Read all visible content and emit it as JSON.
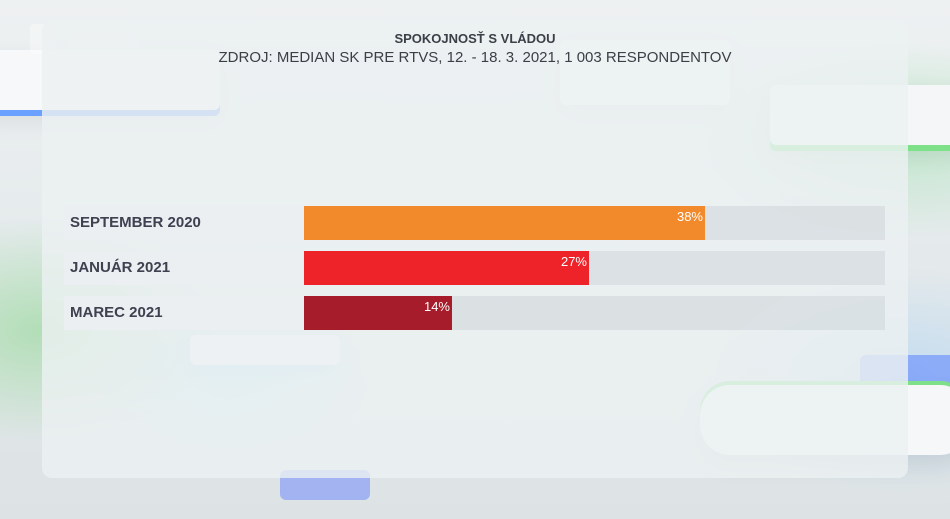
{
  "chart_data": {
    "type": "bar",
    "title": "SPOKOJNOSŤ S VLÁDOU",
    "subtitle": "ZDROJ: MEDIAN SK PRE RTVS, 12. - 18. 3. 2021, 1 003 RESPONDENTOV",
    "orientation": "horizontal",
    "categories": [
      "SEPTEMBER 2020",
      "JANUÁR 2021",
      "MAREC 2021"
    ],
    "values": [
      38,
      27,
      14
    ],
    "value_labels": [
      "38%",
      "27%",
      "14%"
    ],
    "unit": "%",
    "xlim": [
      0,
      55
    ],
    "colors": [
      "#f28a2c",
      "#ee2229",
      "#a61c2a"
    ],
    "grid": false,
    "legend": "none"
  }
}
